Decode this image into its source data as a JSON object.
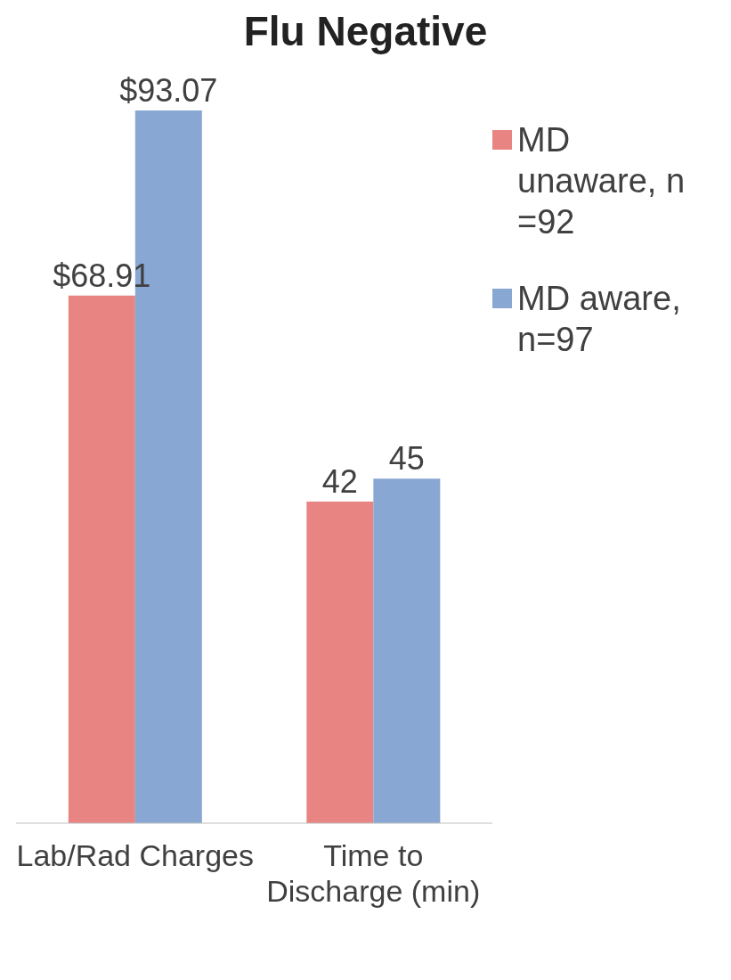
{
  "chart_data": {
    "type": "bar",
    "title": "Flu Negative",
    "categories": [
      "Lab/Rad Charges",
      "Time to Discharge (min)"
    ],
    "series": [
      {
        "name": "MD unaware, n =92",
        "color": "#e88482",
        "values": [
          68.91,
          42
        ],
        "value_labels": [
          "$68.91",
          "42"
        ]
      },
      {
        "name": "MD aware, n=97",
        "color": "#88a7d2",
        "values": [
          93.07,
          45
        ],
        "value_labels": [
          "$93.07",
          "45"
        ]
      }
    ],
    "legend": "top right",
    "grid": false
  }
}
